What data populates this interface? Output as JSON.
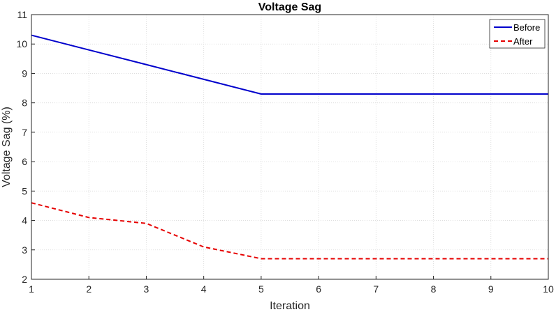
{
  "chart_data": {
    "type": "line",
    "title": "Voltage Sag",
    "xlabel": "Iteration",
    "ylabel": "Voltage Sag (%)",
    "xlim": [
      1,
      10
    ],
    "ylim": [
      2,
      11
    ],
    "xticks": [
      1,
      2,
      3,
      4,
      5,
      6,
      7,
      8,
      9,
      10
    ],
    "yticks": [
      2,
      3,
      4,
      5,
      6,
      7,
      8,
      9,
      10,
      11
    ],
    "grid": true,
    "legend_position": "top-right",
    "x": [
      1,
      2,
      3,
      4,
      5,
      6,
      7,
      8,
      9,
      10
    ],
    "series": [
      {
        "name": "Before",
        "color": "#0000cc",
        "line_style": "solid",
        "values": [
          10.3,
          9.8,
          9.3,
          8.8,
          8.3,
          8.3,
          8.3,
          8.3,
          8.3,
          8.3
        ]
      },
      {
        "name": "After",
        "color": "#e60000",
        "line_style": "dashed",
        "values": [
          4.6,
          4.1,
          3.9,
          3.1,
          2.7,
          2.7,
          2.7,
          2.7,
          2.7,
          2.7
        ]
      }
    ]
  }
}
